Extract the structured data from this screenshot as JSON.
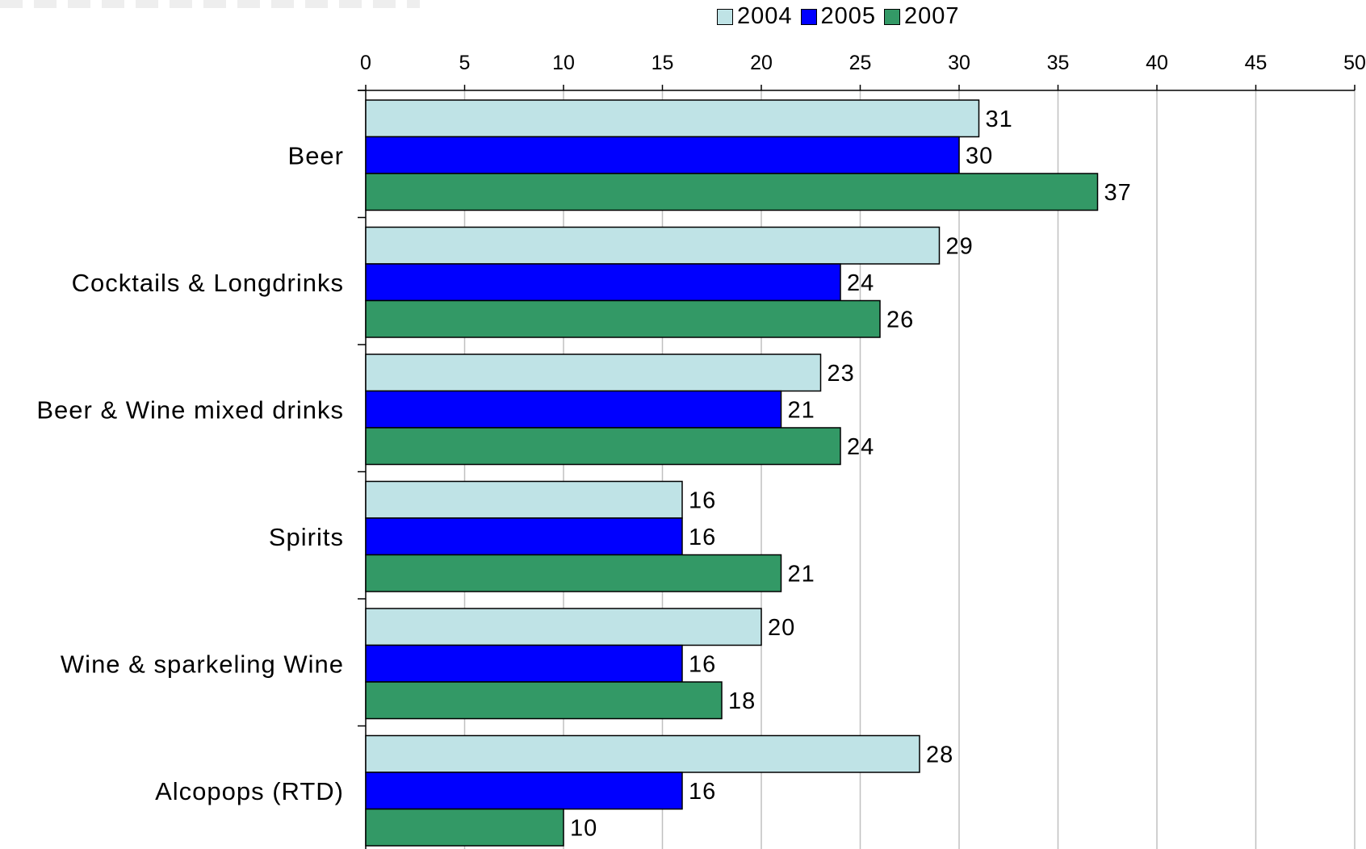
{
  "chart_data": {
    "type": "bar",
    "orientation": "horizontal",
    "categories": [
      "Beer",
      "Cocktails & Longdrinks",
      "Beer & Wine mixed drinks",
      "Spirits",
      "Wine & sparkeling Wine",
      "Alcopops (RTD)"
    ],
    "series": [
      {
        "name": "2004",
        "color": "#BFE3E6",
        "values": [
          31,
          29,
          23,
          16,
          20,
          28
        ]
      },
      {
        "name": "2005",
        "color": "#0000FF",
        "values": [
          30,
          24,
          21,
          16,
          16,
          16
        ]
      },
      {
        "name": "2007",
        "color": "#339966",
        "values": [
          37,
          26,
          24,
          21,
          18,
          10
        ]
      }
    ],
    "xlim": [
      0,
      50
    ],
    "xticks": [
      "0",
      "5",
      "10",
      "15",
      "20",
      "25",
      "30",
      "35",
      "40",
      "45",
      "50"
    ],
    "grid": true,
    "legend_position": "top",
    "data_labels": true
  }
}
